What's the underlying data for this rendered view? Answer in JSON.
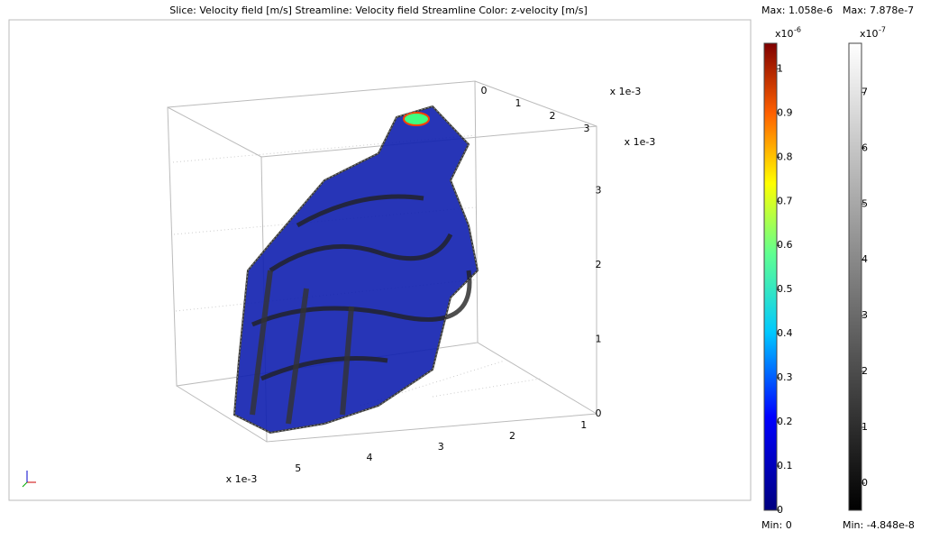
{
  "title": "Slice: Velocity field [m/s]   Streamline: Velocity field   Streamline Color: z-velocity [m/s]",
  "plot_3d": {
    "x_axis": {
      "multiplier": "x 1e-3",
      "ticks": [
        1,
        2,
        3,
        4,
        5
      ]
    },
    "y_axis": {
      "multiplier": "x 1e-3",
      "ticks": [
        0,
        1,
        2,
        3
      ]
    },
    "z_axis": {
      "multiplier": "x 1e-3",
      "ticks": [
        0,
        1,
        2,
        3
      ]
    }
  },
  "colorbars": [
    {
      "max_label": "Max: 1.058e-6",
      "min_label": "Min: 0",
      "multiplier": "x10",
      "exponent": "-6",
      "ylim": [
        0,
        1.058
      ],
      "ticks": [
        0,
        0.1,
        0.2,
        0.3,
        0.4,
        0.5,
        0.6,
        0.7,
        0.8,
        0.9,
        1
      ],
      "colormap": "rainbow"
    },
    {
      "max_label": "Max: 7.878e-7",
      "min_label": "Min: -4.848e-8",
      "multiplier": "x10",
      "exponent": "-7",
      "ylim": [
        -0.4848,
        7.878
      ],
      "ticks": [
        0,
        1,
        2,
        3,
        4,
        5,
        6,
        7
      ],
      "colormap": "gray"
    }
  ]
}
